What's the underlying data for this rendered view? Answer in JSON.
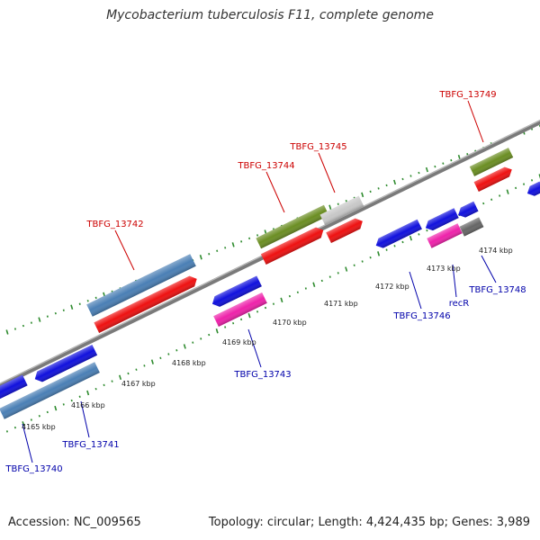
{
  "title": "Mycobacterium tuberculosis F11, complete genome",
  "footer": {
    "accession": "Accession: NC_009565",
    "summary": "Topology: circular; Length: 4,424,435 bp; Genes: 3,989"
  },
  "colors": {
    "backbone": "#7a7a7a",
    "tick": "#2e8b2e",
    "label_top": "#cc0000",
    "label_bottom": "#0000aa"
  },
  "ruler": {
    "tick_labels": [
      "4165 kbp",
      "4166 kbp",
      "4167 kbp",
      "4168 kbp",
      "4169 kbp",
      "4170 kbp",
      "4171 kbp",
      "4172 kbp",
      "4173 kbp",
      "4174 kbp"
    ]
  },
  "labels": {
    "top": [
      "TBFG_13742",
      "TBFG_13744",
      "TBFG_13745",
      "TBFG_13749"
    ],
    "bottom": [
      "TBFG_13740",
      "TBFG_13741",
      "TBFG_13743",
      "TBFG_13746",
      "recR",
      "TBFG_13748"
    ]
  }
}
